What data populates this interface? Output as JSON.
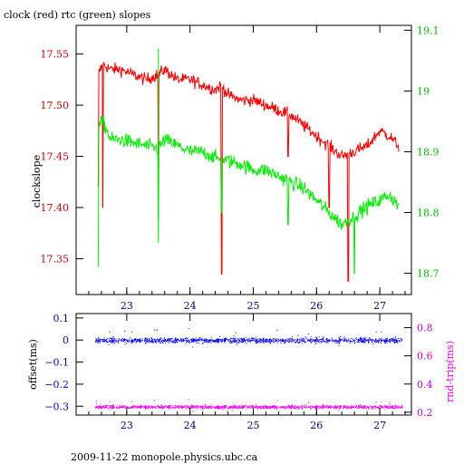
{
  "chart_data": [
    {
      "type": "line",
      "title": "clock (red) rtc (green) slopes",
      "ylabel": "clockslope",
      "x_ticks": [
        23,
        24,
        25,
        26,
        27
      ],
      "xlim": [
        22.2,
        27.5
      ],
      "y_left_ticks": [
        17.35,
        17.4,
        17.45,
        17.5,
        17.55
      ],
      "y_left_lim": [
        17.315,
        17.578
      ],
      "y_right_ticks": [
        18.7,
        18.8,
        18.9,
        19.0,
        19.1
      ],
      "y_right_labels": [
        "18.7",
        "18.8",
        "18.9",
        "19",
        "19.1"
      ],
      "y_right_lim": [
        18.665,
        19.108
      ],
      "series": [
        {
          "name": "clock",
          "color": "#ff0000",
          "axis": "left",
          "x": [
            22.55,
            22.62,
            22.75,
            22.9,
            23.1,
            23.3,
            23.5,
            23.6,
            23.8,
            24.0,
            24.2,
            24.4,
            24.5,
            24.6,
            24.8,
            25.0,
            25.2,
            25.4,
            25.6,
            25.8,
            26.0,
            26.2,
            26.4,
            26.6,
            26.8,
            27.0,
            27.15,
            27.3
          ],
          "values": [
            17.53,
            17.54,
            17.535,
            17.535,
            17.53,
            17.525,
            17.53,
            17.535,
            17.525,
            17.525,
            17.52,
            17.515,
            17.52,
            17.51,
            17.505,
            17.505,
            17.5,
            17.495,
            17.49,
            17.48,
            17.47,
            17.46,
            17.45,
            17.455,
            17.46,
            17.475,
            17.47,
            17.46
          ],
          "outliers": [
            {
              "x": 22.55,
              "value": 17.42
            },
            {
              "x": 22.62,
              "value": 17.4
            },
            {
              "x": 23.5,
              "value": 17.39
            },
            {
              "x": 24.5,
              "value": 17.335
            },
            {
              "x": 25.55,
              "value": 17.45
            },
            {
              "x": 26.2,
              "value": 17.4
            },
            {
              "x": 26.5,
              "value": 17.328
            }
          ]
        },
        {
          "name": "rtc",
          "color": "#00ee00",
          "axis": "right",
          "x": [
            22.55,
            22.62,
            22.75,
            22.9,
            23.1,
            23.3,
            23.5,
            23.6,
            23.8,
            24.0,
            24.2,
            24.4,
            24.6,
            24.8,
            25.0,
            25.2,
            25.4,
            25.6,
            25.8,
            26.0,
            26.2,
            26.4,
            26.6,
            26.8,
            27.0,
            27.15,
            27.3
          ],
          "values": [
            18.94,
            18.95,
            18.92,
            18.92,
            18.915,
            18.91,
            18.905,
            18.92,
            18.91,
            18.9,
            18.9,
            18.89,
            18.885,
            18.88,
            18.87,
            18.87,
            18.86,
            18.85,
            18.84,
            18.82,
            18.8,
            18.78,
            18.795,
            18.81,
            18.82,
            18.83,
            18.81
          ],
          "outliers": [
            {
              "x": 22.55,
              "value": 18.71
            },
            {
              "x": 23.5,
              "value": 19.07
            },
            {
              "x": 23.5,
              "value": 18.75
            },
            {
              "x": 24.5,
              "value": 18.8
            },
            {
              "x": 25.55,
              "value": 18.78
            },
            {
              "x": 26.6,
              "value": 18.7
            }
          ]
        }
      ]
    },
    {
      "type": "scatter",
      "ylabel": "offset(ms)",
      "y2label": "rnd-trip(ms)",
      "x_ticks": [
        23,
        24,
        25,
        26,
        27
      ],
      "xlim": [
        22.2,
        27.5
      ],
      "y_left_ticks": [
        0.1,
        0,
        -0.1,
        -0.2,
        -0.3
      ],
      "y_left_labels": [
        "0.1",
        "0",
        "−0.1",
        "−0.2",
        "−0.3"
      ],
      "y_left_lim": [
        -0.34,
        0.12
      ],
      "y_right_ticks": [
        0.2,
        0.4,
        0.6,
        0.8
      ],
      "y_right_lim": [
        0.18,
        0.9
      ],
      "series": [
        {
          "name": "offset",
          "color": "#0000ff",
          "axis": "left",
          "x_range": [
            22.5,
            27.35
          ],
          "center": 0.0,
          "spread": 0.012
        },
        {
          "name": "rnd-trip",
          "color": "#ff00ff",
          "axis": "right",
          "x_range": [
            22.5,
            27.35
          ],
          "center": 0.24,
          "spread": 0.012
        }
      ]
    }
  ],
  "footer": "2009-11-22 monopole.physics.ubc.ca"
}
